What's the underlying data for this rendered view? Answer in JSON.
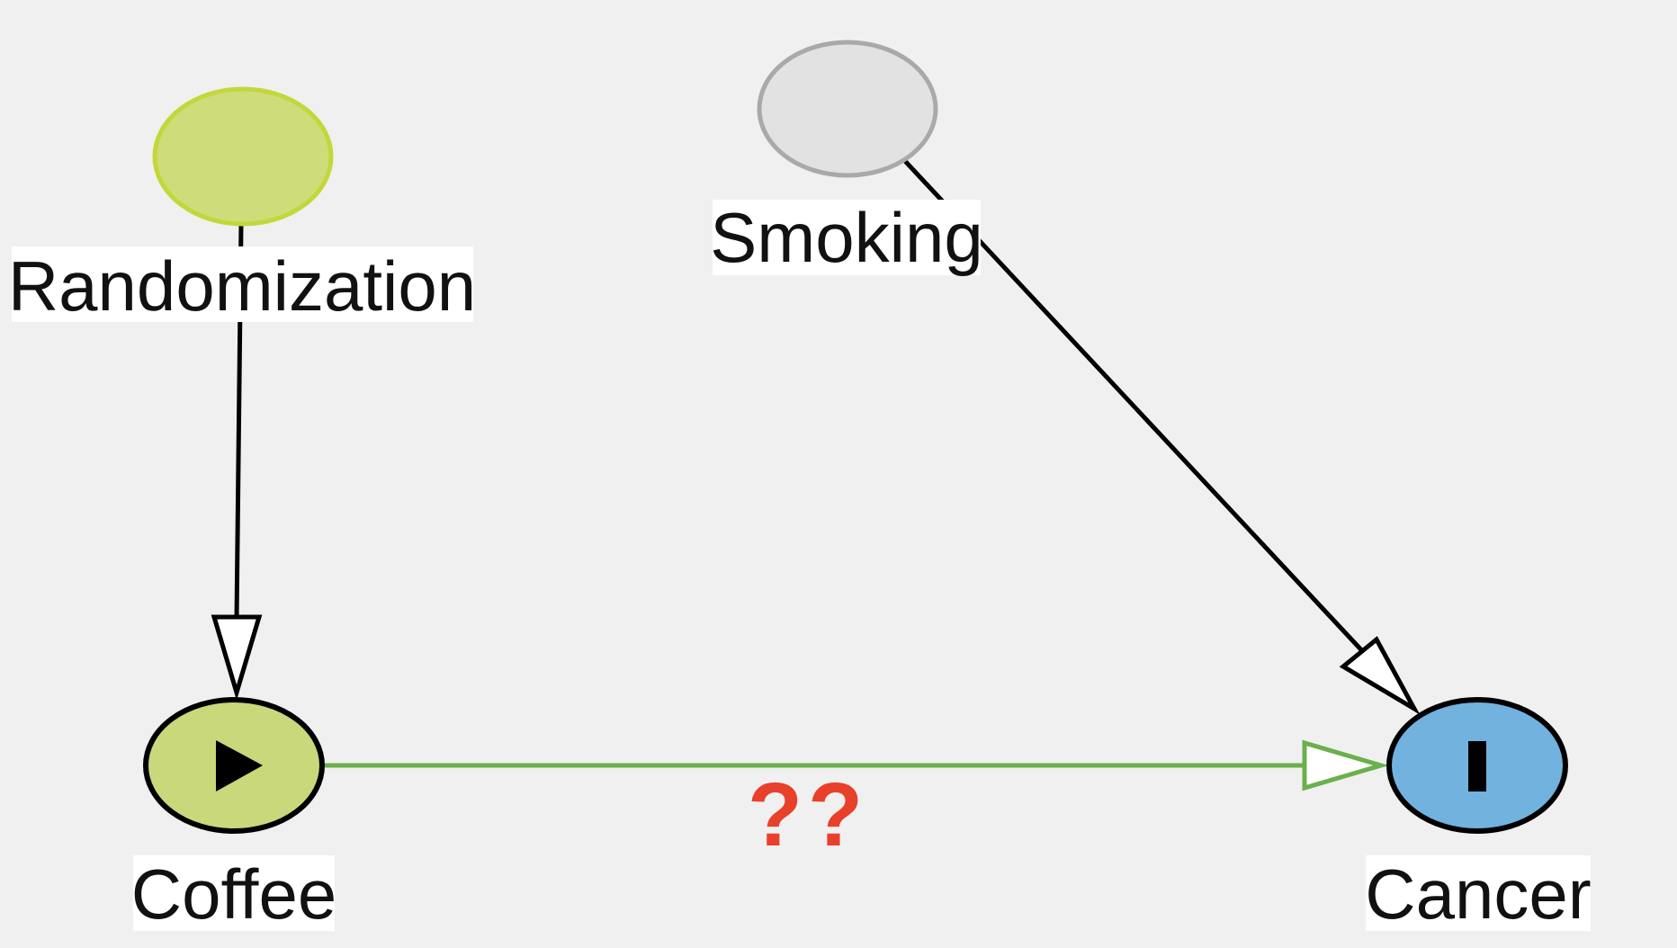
{
  "nodes": {
    "randomization": {
      "label": "Randomization",
      "fill": "#cfdc7a",
      "stroke": "#c2d83a",
      "marker": ""
    },
    "smoking": {
      "label": "Smoking",
      "fill": "#e2e2e2",
      "stroke": "#a9a9a9",
      "marker": ""
    },
    "coffee": {
      "label": "Coffee",
      "fill": "#c8d87a",
      "stroke": "#000000",
      "marker": "play-icon"
    },
    "cancer": {
      "label": "Cancer",
      "fill": "#72b2de",
      "stroke": "#000000",
      "marker": "bar-icon"
    }
  },
  "edges": [
    {
      "from": "randomization",
      "to": "coffee",
      "color": "#000000"
    },
    {
      "from": "smoking",
      "to": "cancer",
      "color": "#000000"
    },
    {
      "from": "coffee",
      "to": "cancer",
      "color": "#6ab04c"
    }
  ],
  "annotation": {
    "text": "??",
    "color": "#e8402a"
  },
  "colors": {
    "background": "#f0f0f0",
    "label_background": "#ffffff"
  }
}
